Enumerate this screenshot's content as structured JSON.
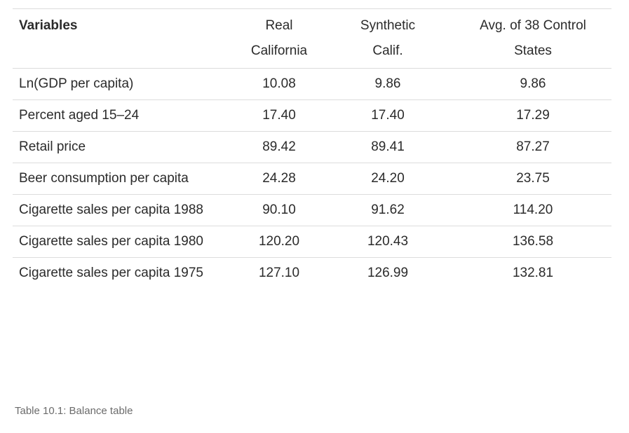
{
  "table": {
    "headers": [
      "Variables",
      "Real\nCalifornia",
      "Synthetic\nCalif.",
      "Avg. of 38 Control\nStates"
    ],
    "rows": [
      {
        "variable": "Ln(GDP per capita)",
        "real": "10.08",
        "synthetic": "9.86",
        "avg": "9.86"
      },
      {
        "variable": "Percent aged 15–24",
        "real": "17.40",
        "synthetic": "17.40",
        "avg": "17.29"
      },
      {
        "variable": "Retail price",
        "real": "89.42",
        "synthetic": "89.41",
        "avg": "87.27"
      },
      {
        "variable": "Beer consumption per capita",
        "real": "24.28",
        "synthetic": "24.20",
        "avg": "23.75"
      },
      {
        "variable": "Cigarette sales per capita 1988",
        "real": "90.10",
        "synthetic": "91.62",
        "avg": "114.20"
      },
      {
        "variable": "Cigarette sales per capita 1980",
        "real": "120.20",
        "synthetic": "120.43",
        "avg": "136.58"
      },
      {
        "variable": "Cigarette sales per capita 1975",
        "real": "127.10",
        "synthetic": "126.99",
        "avg": "132.81"
      }
    ]
  },
  "caption": "Table 10.1: Balance table"
}
